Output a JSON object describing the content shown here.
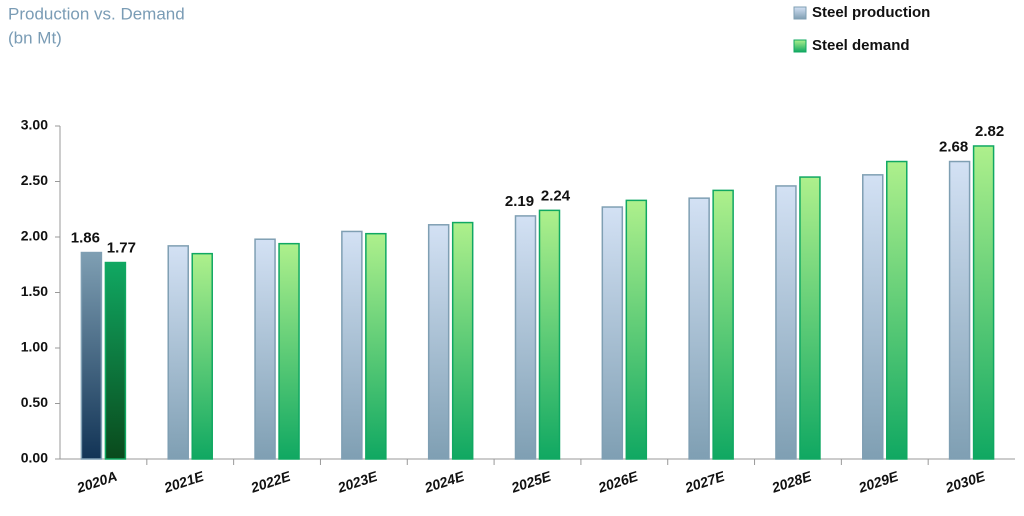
{
  "chart_data": {
    "type": "bar",
    "title": "Production vs. Demand",
    "subtitle": "(bn Mt)",
    "categories": [
      "2020A",
      "2021E",
      "2022E",
      "2023E",
      "2024E",
      "2025E",
      "2026E",
      "2027E",
      "2028E",
      "2029E",
      "2030E"
    ],
    "series": [
      {
        "name": "Steel production",
        "color": "#7f9fb3",
        "values": [
          1.86,
          1.92,
          1.98,
          2.05,
          2.11,
          2.19,
          2.27,
          2.35,
          2.46,
          2.56,
          2.68
        ]
      },
      {
        "name": "Steel demand",
        "color": "#10a862",
        "values": [
          1.77,
          1.85,
          1.94,
          2.03,
          2.13,
          2.24,
          2.33,
          2.42,
          2.54,
          2.68,
          2.82
        ]
      }
    ],
    "ylim": [
      0,
      3
    ],
    "yticks": [
      {
        "value": 0,
        "label": "0.00"
      },
      {
        "value": 0.5,
        "label": "0.50"
      },
      {
        "value": 1,
        "label": "1.00"
      },
      {
        "value": 1.5,
        "label": "1.50"
      },
      {
        "value": 2,
        "label": "2.00"
      },
      {
        "value": 2.5,
        "label": "2.50"
      },
      {
        "value": 3,
        "label": "3.00"
      }
    ],
    "data_labels_at": [
      0,
      5,
      10
    ],
    "highlighted_categories": [
      0
    ],
    "legend": "top-right",
    "grid": false
  }
}
